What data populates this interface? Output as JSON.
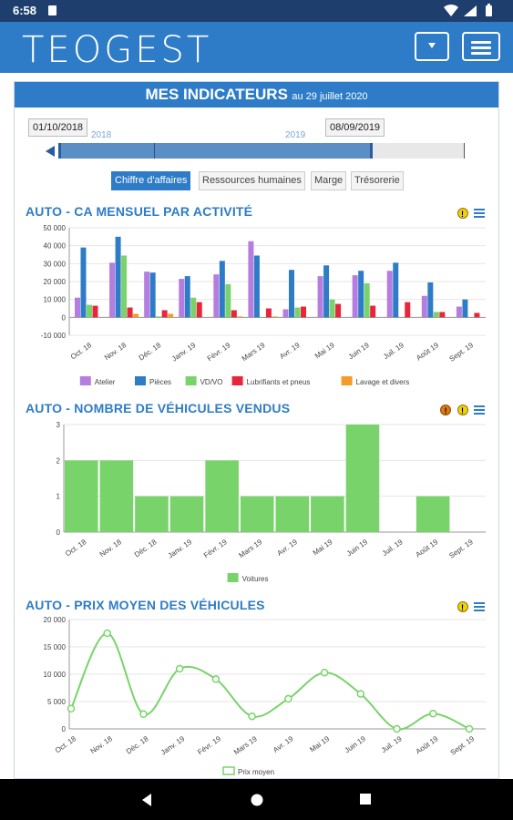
{
  "status_bar": {
    "time": "6:58"
  },
  "app_bar": {
    "logo": "TEOGEST"
  },
  "header": {
    "title": "MES INDICATEURS",
    "subtitle": "au 29 juillet 2020"
  },
  "slider": {
    "start_date": "01/10/2018",
    "end_date": "08/09/2019",
    "year1": "2018",
    "year2": "2019"
  },
  "tabs": [
    "Chiffre d'affaires",
    "Ressources humaines",
    "Marge",
    "Trésorerie"
  ],
  "active_tab": "Chiffre d'affaires",
  "months": [
    "Oct. 18",
    "Nov. 18",
    "Déc. 18",
    "Janv. 19",
    "Févr. 19",
    "Mars 19",
    "Avr. 19",
    "Mai 19",
    "Juin 19",
    "Juil. 19",
    "Août 19",
    "Sept. 19"
  ],
  "colors": {
    "brand": "#2e7cc7",
    "atelier": "#b57de0",
    "pieces": "#2e7cc7",
    "vdvo": "#79d36b",
    "lubrifiants": "#e8253b",
    "lavage": "#f59b2a",
    "voitures": "#79d36b",
    "prix": "#79d36b"
  },
  "chart_data": [
    {
      "type": "bar",
      "title": "AUTO - CA MENSUEL PAR ACTIVITÉ",
      "categories": [
        "Oct. 18",
        "Nov. 18",
        "Déc. 18",
        "Janv. 19",
        "Févr. 19",
        "Mars 19",
        "Avr. 19",
        "Mai 19",
        "Juin 19",
        "Juil. 19",
        "Août 19",
        "Sept. 19"
      ],
      "ylim": [
        -10000,
        50000
      ],
      "yticks": [
        "50 000",
        "40 000",
        "30 000",
        "20 000",
        "10 000",
        "0",
        "-10 000"
      ],
      "series": [
        {
          "name": "Atelier",
          "values": [
            11000,
            30500,
            25500,
            21500,
            24000,
            42500,
            4500,
            23000,
            23500,
            26000,
            12000,
            6000
          ]
        },
        {
          "name": "Pièces",
          "values": [
            39000,
            45000,
            25000,
            23000,
            31500,
            34500,
            26500,
            29000,
            26000,
            30500,
            19500,
            10000
          ]
        },
        {
          "name": "VD/VO",
          "values": [
            7000,
            34500,
            500,
            11000,
            18500,
            0,
            5500,
            10000,
            19000,
            0,
            3000,
            0
          ]
        },
        {
          "name": "Lubrifiants et pneus",
          "values": [
            6500,
            5500,
            4000,
            8500,
            4000,
            5000,
            6000,
            7500,
            6500,
            8500,
            3000,
            2500
          ]
        },
        {
          "name": "Lavage et divers",
          "values": [
            0,
            2000,
            2000,
            0,
            500,
            500,
            0,
            0,
            0,
            0,
            0,
            0
          ]
        }
      ]
    },
    {
      "type": "bar",
      "title": "AUTO - NOMBRE DE VÉHICULES VENDUS",
      "categories": [
        "Oct. 18",
        "Nov. 18",
        "Déc. 18",
        "Janv. 19",
        "Févr. 19",
        "Mars 19",
        "Avr. 19",
        "Mai 19",
        "Juin 19",
        "Juil. 19",
        "Août 19",
        "Sept. 19"
      ],
      "ylim": [
        0,
        3
      ],
      "yticks": [
        "3",
        "2",
        "1",
        "0"
      ],
      "series": [
        {
          "name": "Voitures",
          "values": [
            2,
            2,
            1,
            1,
            2,
            1,
            1,
            1,
            3,
            0,
            1,
            0
          ]
        }
      ]
    },
    {
      "type": "line",
      "title": "AUTO - PRIX MOYEN DES VÉHICULES",
      "categories": [
        "Oct. 18",
        "Nov. 18",
        "Déc. 18",
        "Janv. 19",
        "Févr. 19",
        "Mars 19",
        "Avr. 19",
        "Mai 19",
        "Juin 19",
        "Juil. 19",
        "Août 19",
        "Sept. 19"
      ],
      "ylim": [
        0,
        20000
      ],
      "yticks": [
        "20 000",
        "15 000",
        "10 000",
        "5 000",
        "0"
      ],
      "series": [
        {
          "name": "Prix moyen",
          "values": [
            3700,
            17500,
            2700,
            11000,
            9100,
            2300,
            5500,
            10300,
            6400,
            0,
            2800,
            0
          ]
        }
      ]
    }
  ]
}
